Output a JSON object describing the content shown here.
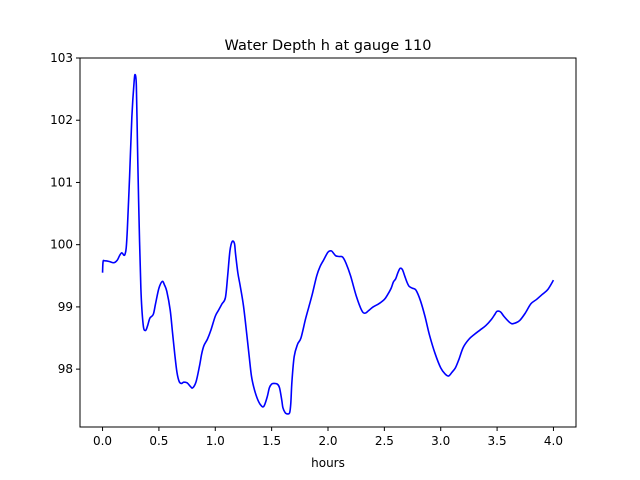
{
  "chart_data": {
    "type": "line",
    "title": "Water Depth h at gauge 110",
    "xlabel": "hours",
    "ylabel": "",
    "xlim": [
      -0.2,
      4.2
    ],
    "ylim": [
      97.07,
      103.0
    ],
    "xticks": [
      0.0,
      0.5,
      1.0,
      1.5,
      2.0,
      2.5,
      3.0,
      3.5,
      4.0
    ],
    "xtick_labels": [
      "0.0",
      "0.5",
      "1.0",
      "1.5",
      "2.0",
      "2.5",
      "3.0",
      "3.5",
      "4.0"
    ],
    "yticks": [
      98,
      99,
      100,
      101,
      102,
      103
    ],
    "ytick_labels": [
      "98",
      "99",
      "100",
      "101",
      "102",
      "103"
    ],
    "grid": false,
    "series": [
      {
        "color": "#0000ff",
        "x": [
          0.0,
          0.005,
          0.02,
          0.06,
          0.1,
          0.13,
          0.15,
          0.17,
          0.19,
          0.2,
          0.21,
          0.22,
          0.24,
          0.26,
          0.28,
          0.29,
          0.3,
          0.31,
          0.32,
          0.34,
          0.36,
          0.38,
          0.4,
          0.42,
          0.45,
          0.47,
          0.5,
          0.53,
          0.55,
          0.57,
          0.6,
          0.62,
          0.64,
          0.66,
          0.68,
          0.7,
          0.72,
          0.75,
          0.78,
          0.8,
          0.83,
          0.86,
          0.88,
          0.9,
          0.93,
          0.96,
          1.0,
          1.03,
          1.06,
          1.09,
          1.11,
          1.13,
          1.15,
          1.17,
          1.18,
          1.2,
          1.22,
          1.25,
          1.28,
          1.3,
          1.32,
          1.34,
          1.37,
          1.4,
          1.43,
          1.46,
          1.48,
          1.5,
          1.52,
          1.55,
          1.57,
          1.59,
          1.6,
          1.62,
          1.64,
          1.66,
          1.67,
          1.68,
          1.7,
          1.73,
          1.76,
          1.8,
          1.83,
          1.86,
          1.9,
          1.93,
          1.96,
          2.0,
          2.03,
          2.05,
          2.07,
          2.1,
          2.13,
          2.16,
          2.2,
          2.25,
          2.3,
          2.33,
          2.36,
          2.4,
          2.45,
          2.5,
          2.53,
          2.56,
          2.58,
          2.6,
          2.62,
          2.64,
          2.66,
          2.68,
          2.7,
          2.72,
          2.75,
          2.78,
          2.82,
          2.86,
          2.9,
          2.95,
          3.0,
          3.04,
          3.07,
          3.1,
          3.13,
          3.16,
          3.2,
          3.25,
          3.3,
          3.35,
          3.4,
          3.45,
          3.48,
          3.5,
          3.53,
          3.56,
          3.6,
          3.63,
          3.66,
          3.7,
          3.75,
          3.8,
          3.85,
          3.9,
          3.95,
          4.0
        ],
        "y": [
          99.55,
          99.73,
          99.74,
          99.73,
          99.71,
          99.75,
          99.82,
          99.87,
          99.83,
          99.85,
          99.95,
          100.25,
          101.1,
          102.05,
          102.62,
          102.73,
          102.55,
          101.6,
          100.7,
          99.3,
          98.72,
          98.62,
          98.7,
          98.82,
          98.88,
          99.05,
          99.3,
          99.41,
          99.35,
          99.25,
          98.95,
          98.6,
          98.25,
          97.95,
          97.8,
          97.77,
          97.79,
          97.78,
          97.72,
          97.7,
          97.8,
          98.05,
          98.25,
          98.38,
          98.48,
          98.62,
          98.85,
          98.95,
          99.05,
          99.15,
          99.5,
          99.9,
          100.05,
          100.02,
          99.85,
          99.55,
          99.35,
          99.02,
          98.55,
          98.22,
          97.9,
          97.72,
          97.54,
          97.43,
          97.4,
          97.55,
          97.7,
          97.76,
          97.77,
          97.76,
          97.7,
          97.5,
          97.38,
          97.3,
          97.28,
          97.3,
          97.45,
          97.8,
          98.2,
          98.4,
          98.5,
          98.8,
          99.0,
          99.2,
          99.5,
          99.65,
          99.75,
          99.88,
          99.9,
          99.86,
          99.82,
          99.81,
          99.8,
          99.7,
          99.5,
          99.18,
          98.94,
          98.9,
          98.94,
          99.0,
          99.05,
          99.12,
          99.2,
          99.3,
          99.4,
          99.45,
          99.55,
          99.62,
          99.6,
          99.5,
          99.4,
          99.33,
          99.3,
          99.27,
          99.1,
          98.85,
          98.55,
          98.25,
          98.02,
          97.92,
          97.89,
          97.95,
          98.02,
          98.15,
          98.35,
          98.48,
          98.56,
          98.63,
          98.7,
          98.8,
          98.88,
          98.93,
          98.92,
          98.85,
          98.77,
          98.73,
          98.74,
          98.78,
          98.9,
          99.05,
          99.12,
          99.2,
          99.28,
          99.43
        ]
      }
    ]
  }
}
